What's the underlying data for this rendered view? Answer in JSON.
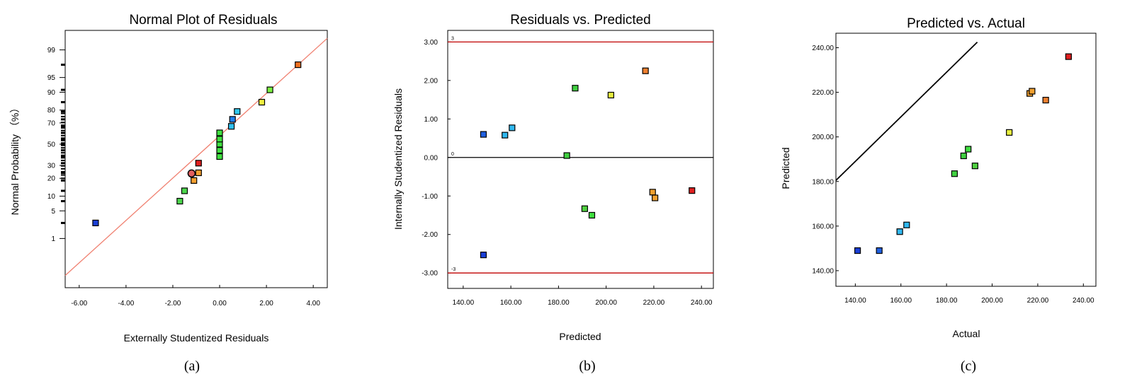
{
  "chart_data": [
    {
      "type": "scatter",
      "panel_label": "(a)",
      "title": "Normal Plot of Residuals",
      "xlabel": "Externally Studentized Residuals",
      "ylabel": "Normal  Probability  （%）",
      "xlim": [
        -6.6,
        4.6
      ],
      "yscale": "normal-probability",
      "xticks": [
        "-6.00",
        "-4.00",
        "-2.00",
        "0.00",
        "2.00",
        "4.00"
      ],
      "xtick_values": [
        -6,
        -4,
        -2,
        0,
        2,
        4
      ],
      "yticks": [
        "1",
        "5",
        "10",
        "20",
        "30",
        "50",
        "70",
        "80",
        "90",
        "95",
        "99"
      ],
      "ytick_values": [
        1,
        5,
        10,
        20,
        30,
        50,
        70,
        80,
        90,
        95,
        99
      ],
      "reference_line": {
        "from": [
          -6.6,
          0.06
        ],
        "to": [
          4.6,
          99.55
        ],
        "color": "#f08070"
      },
      "points": [
        {
          "x": -5.3,
          "y": 2.6,
          "color": "#1a3fd6"
        },
        {
          "x": -1.7,
          "y": 8.0,
          "color": "#4cd64c"
        },
        {
          "x": -1.5,
          "y": 12.5,
          "color": "#4cd64c"
        },
        {
          "x": -1.1,
          "y": 18.5,
          "color": "#f5a030"
        },
        {
          "x": -0.9,
          "y": 24.0,
          "color": "#f5a030"
        },
        {
          "x": -0.9,
          "y": 32.0,
          "color": "#e02020"
        },
        {
          "x": 0.0,
          "y": 38.0,
          "color": "#40e040"
        },
        {
          "x": 0.0,
          "y": 44.0,
          "color": "#40e040"
        },
        {
          "x": 0.0,
          "y": 50.0,
          "color": "#40e040"
        },
        {
          "x": 0.0,
          "y": 55.0,
          "color": "#40e040"
        },
        {
          "x": 0.0,
          "y": 61.0,
          "color": "#40e040"
        },
        {
          "x": 0.5,
          "y": 67.0,
          "color": "#30c0f0"
        },
        {
          "x": 0.55,
          "y": 73.0,
          "color": "#2080f0"
        },
        {
          "x": 0.75,
          "y": 79.0,
          "color": "#30c8f0"
        },
        {
          "x": 1.8,
          "y": 85.0,
          "color": "#f0f040"
        },
        {
          "x": 2.15,
          "y": 91.0,
          "color": "#7cf040"
        },
        {
          "x": 3.35,
          "y": 97.5,
          "color": "#f07020"
        }
      ],
      "highlight_point": {
        "x": -1.2,
        "y": 23.5,
        "color": "#e06060"
      }
    },
    {
      "type": "scatter",
      "panel_label": "(b)",
      "title": "Residuals vs. Predicted",
      "xlabel": "Predicted",
      "ylabel": "Internally Studentized Residuals",
      "xlim": [
        133.5,
        245
      ],
      "ylim": [
        -3.4,
        3.3
      ],
      "xticks": [
        "140.00",
        "160.00",
        "180.00",
        "200.00",
        "220.00",
        "240.00"
      ],
      "xtick_values": [
        140,
        160,
        180,
        200,
        220,
        240
      ],
      "yticks": [
        "-3.00",
        "-2.00",
        "-1.00",
        "0.00",
        "1.00",
        "2.00",
        "3.00"
      ],
      "ytick_values": [
        -3,
        -2,
        -1,
        0,
        1,
        2,
        3
      ],
      "reference_lines": [
        {
          "y": 3,
          "label": "3",
          "color": "#c00000"
        },
        {
          "y": 0,
          "label": "0",
          "color": "#000000"
        },
        {
          "y": -3,
          "label": "-3",
          "color": "#c00000"
        }
      ],
      "points": [
        {
          "x": 148.5,
          "y": 0.6,
          "color": "#2060e0"
        },
        {
          "x": 157.5,
          "y": 0.58,
          "color": "#30b8f0"
        },
        {
          "x": 160.5,
          "y": 0.77,
          "color": "#30b8f0"
        },
        {
          "x": 148.5,
          "y": -2.53,
          "color": "#1a3fd6"
        },
        {
          "x": 183.5,
          "y": 0.05,
          "color": "#40d040"
        },
        {
          "x": 187.0,
          "y": 1.8,
          "color": "#40d040"
        },
        {
          "x": 191.0,
          "y": -1.33,
          "color": "#50d040"
        },
        {
          "x": 194.0,
          "y": -1.5,
          "color": "#40e040"
        },
        {
          "x": 202.0,
          "y": 1.62,
          "color": "#e8f040"
        },
        {
          "x": 216.5,
          "y": 2.25,
          "color": "#f08030"
        },
        {
          "x": 219.5,
          "y": -0.9,
          "color": "#f0a030"
        },
        {
          "x": 220.5,
          "y": -1.05,
          "color": "#f0a030"
        },
        {
          "x": 236.0,
          "y": -0.86,
          "color": "#e02020"
        }
      ]
    },
    {
      "type": "scatter",
      "panel_label": "(c)",
      "title": "Predicted vs. Actual",
      "xlabel": "Actual",
      "ylabel": "Predicted",
      "xlim": [
        131.5,
        245.5
      ],
      "ylim": [
        133,
        246.5
      ],
      "xticks": [
        "140.00",
        "160.00",
        "180.00",
        "200.00",
        "220.00",
        "240.00"
      ],
      "xtick_values": [
        140,
        160,
        180,
        200,
        220,
        240
      ],
      "yticks": [
        "140.00",
        "160.00",
        "180.00",
        "200.00",
        "220.00",
        "240.00"
      ],
      "ytick_values": [
        140,
        160,
        180,
        200,
        220,
        240
      ],
      "reference_line": {
        "from": [
          131.5,
          180.5
        ],
        "to": [
          193.5,
          242.5
        ],
        "color": "#000000"
      },
      "points": [
        {
          "x": 141.0,
          "y": 149.0,
          "color": "#1a3fd6"
        },
        {
          "x": 150.5,
          "y": 149.0,
          "color": "#2060e0"
        },
        {
          "x": 159.5,
          "y": 157.5,
          "color": "#30b8f0"
        },
        {
          "x": 162.5,
          "y": 160.5,
          "color": "#30b8f0"
        },
        {
          "x": 183.5,
          "y": 183.5,
          "color": "#40d040"
        },
        {
          "x": 187.5,
          "y": 191.5,
          "color": "#40d040"
        },
        {
          "x": 189.5,
          "y": 194.5,
          "color": "#40e040"
        },
        {
          "x": 192.5,
          "y": 187.0,
          "color": "#50d040"
        },
        {
          "x": 207.5,
          "y": 202.0,
          "color": "#e8f040"
        },
        {
          "x": 216.5,
          "y": 219.5,
          "color": "#f0a030"
        },
        {
          "x": 217.5,
          "y": 220.5,
          "color": "#f0a030"
        },
        {
          "x": 223.5,
          "y": 216.5,
          "color": "#f08030"
        },
        {
          "x": 233.5,
          "y": 236.0,
          "color": "#e02020"
        }
      ]
    }
  ]
}
